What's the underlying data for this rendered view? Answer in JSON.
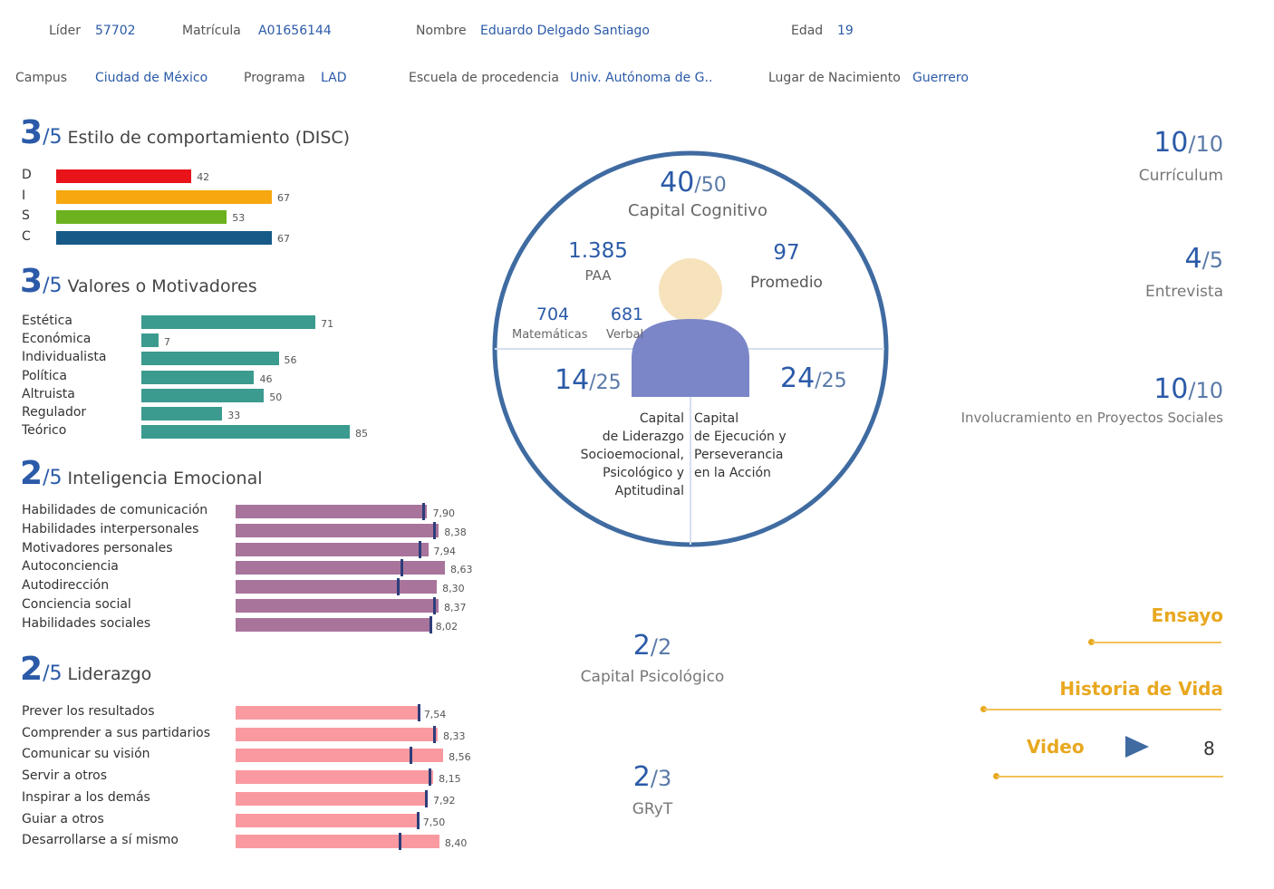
{
  "header": {
    "row1": [
      {
        "label": "Líder",
        "value": "57702"
      },
      {
        "label": "Matrícula",
        "value": "A01656144"
      },
      {
        "label": "Nombre",
        "value": "Eduardo Delgado Santiago"
      },
      {
        "label": "Edad",
        "value": "19"
      }
    ],
    "row2": [
      {
        "label": "Campus",
        "value": "Ciudad de México"
      },
      {
        "label": "Programa",
        "value": "LAD"
      },
      {
        "label": "Escuela de procedencia",
        "value": "Univ. Autónoma de G.."
      },
      {
        "label": "Lugar de Nacimiento",
        "value": "Guerrero"
      }
    ]
  },
  "disc": {
    "score": "3",
    "denom": "/5",
    "title": "Estilo de comportamiento (DISC)",
    "rows": [
      {
        "label": "D",
        "value": 42,
        "color": "#e8141a"
      },
      {
        "label": "I",
        "value": 67,
        "color": "#f7a70f"
      },
      {
        "label": "S",
        "value": 53,
        "color": "#6bb21e"
      },
      {
        "label": "C",
        "value": 67,
        "color": "#175a87"
      }
    ]
  },
  "valores": {
    "score": "3",
    "denom": "/5",
    "title": "Valores o Motivadores",
    "color": "#3b9b8f",
    "rows": [
      {
        "label": "Estética",
        "value": 71
      },
      {
        "label": "Económica",
        "value": 7
      },
      {
        "label": "Individualista",
        "value": 56
      },
      {
        "label": "Política",
        "value": 46
      },
      {
        "label": "Altruista",
        "value": 50
      },
      {
        "label": "Regulador",
        "value": 33
      },
      {
        "label": "Teórico",
        "value": 85
      }
    ]
  },
  "inteligencia": {
    "score": "2",
    "denom": "/5",
    "title": "Inteligencia Emocional",
    "color": "#a8749c",
    "rows": [
      {
        "label": "Habilidades de comunicación",
        "value": 7.9,
        "text": "7,90",
        "marker": 7.75
      },
      {
        "label": "Habilidades interpersonales",
        "value": 8.38,
        "text": "8,38",
        "marker": 8.2
      },
      {
        "label": "Motivadores personales",
        "value": 7.94,
        "text": "7,94",
        "marker": 7.6
      },
      {
        "label": "Autoconciencia",
        "value": 8.63,
        "text": "8,63",
        "marker": 6.85
      },
      {
        "label": "Autodirección",
        "value": 8.3,
        "text": "8,30",
        "marker": 6.7
      },
      {
        "label": "Conciencia social",
        "value": 8.37,
        "text": "8,37",
        "marker": 8.2
      },
      {
        "label": "Habilidades sociales",
        "value": 8.02,
        "text": "8,02",
        "marker": 8.02
      }
    ]
  },
  "liderazgo": {
    "score": "2",
    "denom": "/5",
    "title": "Liderazgo",
    "color": "#fa9aa0",
    "rows": [
      {
        "label": "Prever los resultados",
        "value": 7.54,
        "text": "7,54",
        "marker": 7.54
      },
      {
        "label": "Comprender a sus partidarios",
        "value": 8.33,
        "text": "8,33",
        "marker": 8.2
      },
      {
        "label": "Comunicar su visión",
        "value": 8.56,
        "text": "8,56",
        "marker": 7.2
      },
      {
        "label": "Servir a otros",
        "value": 8.15,
        "text": "8,15",
        "marker": 8.0
      },
      {
        "label": "Inspirar a los demás",
        "value": 7.92,
        "text": "7,92",
        "marker": 7.85
      },
      {
        "label": "Guiar a otros",
        "value": 7.5,
        "text": "7,50",
        "marker": 7.5
      },
      {
        "label": "Desarrollarse a sí mismo",
        "value": 8.4,
        "text": "8,40",
        "marker": 6.75
      }
    ]
  },
  "circle": {
    "cognitivo": {
      "score": "40",
      "denom": "/50",
      "label": "Capital Cognitivo"
    },
    "paa": {
      "value": "1.385",
      "label": "PAA"
    },
    "promedio": {
      "value": "97",
      "label": "Promedio"
    },
    "matematicas": {
      "value": "704",
      "label": "Matemáticas"
    },
    "verbal": {
      "value": "681",
      "label": "Verbal"
    },
    "liderazgo": {
      "score": "14",
      "denom": "/25",
      "lines": [
        "Capital",
        "de Liderazgo",
        "Socioemocional,",
        "Psicológico y",
        "Aptitudinal"
      ]
    },
    "ejecucion": {
      "score": "24",
      "denom": "/25",
      "lines": [
        "Capital",
        "de Ejecución y",
        "Perseverancia",
        "en la Acción"
      ]
    }
  },
  "psicologico": {
    "score": "2",
    "denom": "/2",
    "label": "Capital Psicológico"
  },
  "gryt": {
    "score": "2",
    "denom": "/3",
    "label": "GRyT"
  },
  "right": {
    "curriculum": {
      "score": "10",
      "denom": "/10",
      "label": "Currículum"
    },
    "entrevista": {
      "score": "4",
      "denom": "/5",
      "label": "Entrevista"
    },
    "proyectos": {
      "score": "10",
      "denom": "/10",
      "label": "Involucramiento en Proyectos Sociales"
    },
    "ensayo": "Ensayo",
    "historia": "Historia de Vida",
    "video": {
      "label": "Video",
      "value": "8"
    }
  }
}
